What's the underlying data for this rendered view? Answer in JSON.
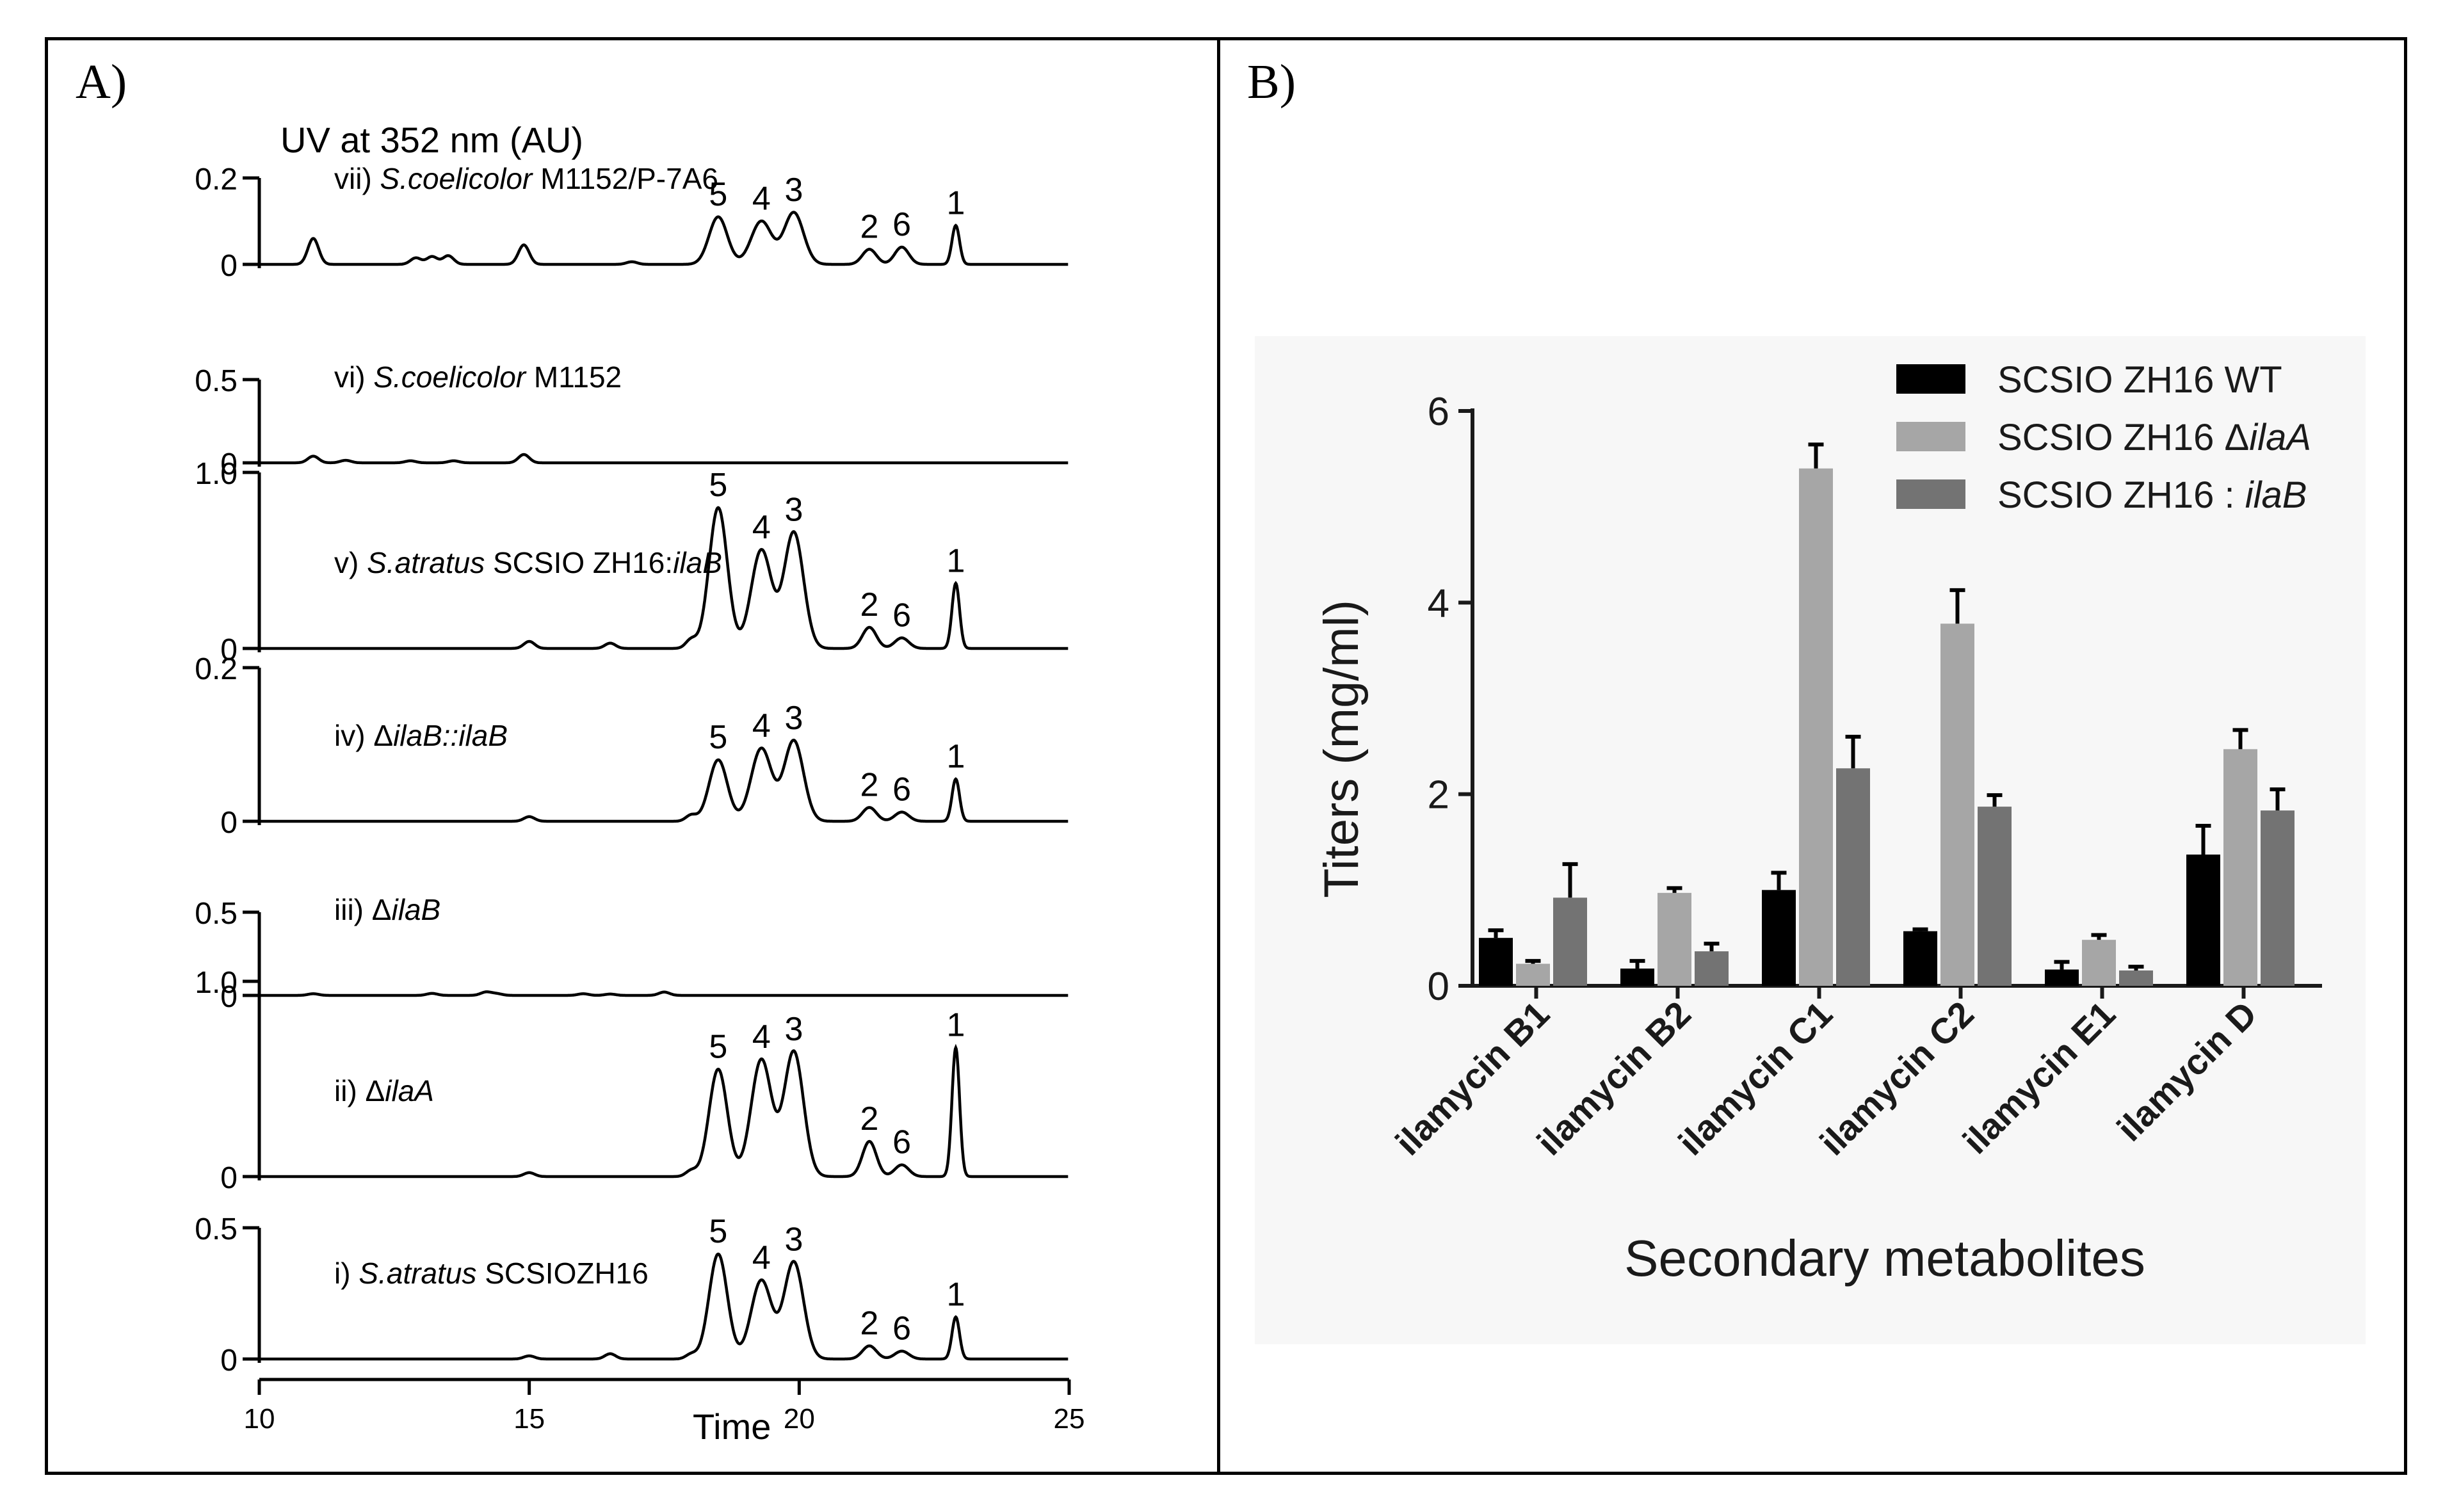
{
  "figure": {
    "panel_a_label": "A)",
    "panel_b_label": "B)"
  },
  "colors": {
    "line": "#000000",
    "wt": "#000000",
    "ila_a": "#a6a6a6",
    "ila_b": "#737373",
    "panel_b_bg": "#f7f7f7",
    "axis": "#1a1a1a"
  },
  "chart_data": [
    {
      "type": "line",
      "title": "",
      "xlabel": "Time",
      "ylabel": "UV at 352 nm (AU)",
      "xlim": [
        10,
        25
      ],
      "x_ticks": [
        "10",
        "15",
        "20",
        "25"
      ],
      "peak_times": {
        "5": 18.5,
        "4": 19.3,
        "3": 19.9,
        "2": 21.3,
        "6": 21.9,
        "1": 22.9
      },
      "traces": [
        {
          "id": "vii",
          "label_prefix": "vii)",
          "label_species": "S.coelicolor",
          "label_strain": "M1152/P-7A6",
          "label_suffix": "",
          "y_top_label": "0.2",
          "y_zero_label": "0",
          "y_max": 0.2,
          "peak_heights": {
            "5": 0.11,
            "4": 0.1,
            "3": 0.12,
            "2": 0.035,
            "6": 0.04,
            "1": 0.09
          },
          "minor_peaks": [
            [
              11.0,
              0.06
            ],
            [
              12.9,
              0.015
            ],
            [
              13.2,
              0.018
            ],
            [
              13.5,
              0.02
            ],
            [
              14.9,
              0.045
            ],
            [
              16.9,
              0.006
            ]
          ],
          "peak_labels": [
            "5",
            "4",
            "3",
            "2",
            "6",
            "1"
          ]
        },
        {
          "id": "vi",
          "label_prefix": "vi)",
          "label_species": "S.coelicolor",
          "label_strain": "M1152",
          "label_suffix": "",
          "y_top_label": "0.5",
          "y_zero_label": "0",
          "y_max": 0.5,
          "peak_heights": {},
          "minor_peaks": [
            [
              11.0,
              0.04
            ],
            [
              11.6,
              0.015
            ],
            [
              12.8,
              0.012
            ],
            [
              13.6,
              0.012
            ],
            [
              14.9,
              0.05
            ]
          ],
          "peak_labels": []
        },
        {
          "id": "v",
          "label_prefix": "v)",
          "label_species": "S.atratus",
          "label_strain": "SCSIO ZH16:",
          "label_suffix": "ilaB",
          "y_top_label": "1.0",
          "y_zero_label": "0",
          "y_max": 1.0,
          "peak_heights": {
            "5": 0.8,
            "4": 0.56,
            "3": 0.66,
            "2": 0.12,
            "6": 0.06,
            "1": 0.37
          },
          "minor_peaks": [
            [
              15.0,
              0.04
            ],
            [
              16.5,
              0.03
            ],
            [
              18.0,
              0.05
            ]
          ],
          "peak_labels": [
            "5",
            "4",
            "3",
            "2",
            "6",
            "1"
          ]
        },
        {
          "id": "iv",
          "label_prefix": "iv)",
          "label_species": "",
          "label_strain": "Δ",
          "label_suffix": "ilaB::ilaB",
          "y_top_label": "0.2",
          "y_zero_label": "0",
          "y_max": 0.2,
          "peak_heights": {
            "5": 0.08,
            "4": 0.095,
            "3": 0.105,
            "2": 0.018,
            "6": 0.012,
            "1": 0.055
          },
          "minor_peaks": [
            [
              15.0,
              0.006
            ],
            [
              18.0,
              0.008
            ]
          ],
          "peak_labels": [
            "5",
            "4",
            "3",
            "2",
            "6",
            "1"
          ]
        },
        {
          "id": "iii",
          "label_prefix": "iii)",
          "label_species": "",
          "label_strain": "Δ",
          "label_suffix": "ilaB",
          "y_top_label": "0.5",
          "y_zero_label": "0",
          "y_max": 0.5,
          "peak_heights": {},
          "minor_peaks": [
            [
              11.0,
              0.01
            ],
            [
              13.2,
              0.012
            ],
            [
              14.2,
              0.02
            ],
            [
              14.4,
              0.01
            ],
            [
              16.0,
              0.01
            ],
            [
              16.5,
              0.008
            ],
            [
              17.5,
              0.02
            ]
          ],
          "peak_labels": []
        },
        {
          "id": "ii",
          "label_prefix": "ii)",
          "label_species": "",
          "label_strain": "Δ",
          "label_suffix": "ilaA",
          "y_top_label": "1.0",
          "y_zero_label": "0",
          "y_max": 1.0,
          "peak_heights": {
            "5": 0.55,
            "4": 0.6,
            "3": 0.64,
            "2": 0.18,
            "6": 0.06,
            "1": 0.66
          },
          "minor_peaks": [
            [
              15.0,
              0.02
            ],
            [
              18.0,
              0.03
            ]
          ],
          "peak_labels": [
            "5",
            "4",
            "3",
            "2",
            "6",
            "1"
          ]
        },
        {
          "id": "i",
          "label_prefix": "i)",
          "label_species": "S.atratus",
          "label_strain": "SCSIOZH16",
          "label_suffix": "",
          "y_top_label": "0.5",
          "y_zero_label": "0",
          "y_max": 0.5,
          "peak_heights": {
            "5": 0.4,
            "4": 0.3,
            "3": 0.37,
            "2": 0.05,
            "6": 0.03,
            "1": 0.16
          },
          "minor_peaks": [
            [
              15.0,
              0.012
            ],
            [
              16.5,
              0.02
            ],
            [
              18.0,
              0.018
            ]
          ],
          "peak_labels": [
            "5",
            "4",
            "3",
            "2",
            "6",
            "1"
          ]
        }
      ]
    },
    {
      "type": "bar",
      "title": "",
      "xlabel": "Secondary metabolites",
      "ylabel": "Titers (mg/ml)",
      "ylim": [
        0,
        6
      ],
      "y_ticks": [
        "0",
        "2",
        "4",
        "6"
      ],
      "categories": [
        "ilamycin B1",
        "ilamycin B2",
        "ilamycin C1",
        "ilamycin C2",
        "ilamycin E1",
        "ilamycin D"
      ],
      "series": [
        {
          "name": "SCSIO ZH16 WT",
          "name_main": "SCSIO ZH16 WT",
          "name_italic": "",
          "values": [
            0.5,
            0.18,
            1.0,
            0.57,
            0.17,
            1.37
          ],
          "errors": [
            0.08,
            0.08,
            0.18,
            0.02,
            0.08,
            0.3
          ]
        },
        {
          "name": "SCSIO ZH16 ΔilaA",
          "name_main": "SCSIO ZH16 Δ",
          "name_italic": "ilaA",
          "values": [
            0.23,
            0.97,
            5.4,
            3.78,
            0.48,
            2.47
          ],
          "errors": [
            0.03,
            0.05,
            0.25,
            0.35,
            0.05,
            0.2
          ]
        },
        {
          "name": "SCSIO ZH16 : ilaB",
          "name_main": "SCSIO ZH16 : ",
          "name_italic": "ilaB",
          "values": [
            0.92,
            0.36,
            2.27,
            1.87,
            0.16,
            1.83
          ],
          "errors": [
            0.35,
            0.08,
            0.33,
            0.12,
            0.04,
            0.22
          ]
        }
      ],
      "legend_position": "top-right"
    }
  ]
}
